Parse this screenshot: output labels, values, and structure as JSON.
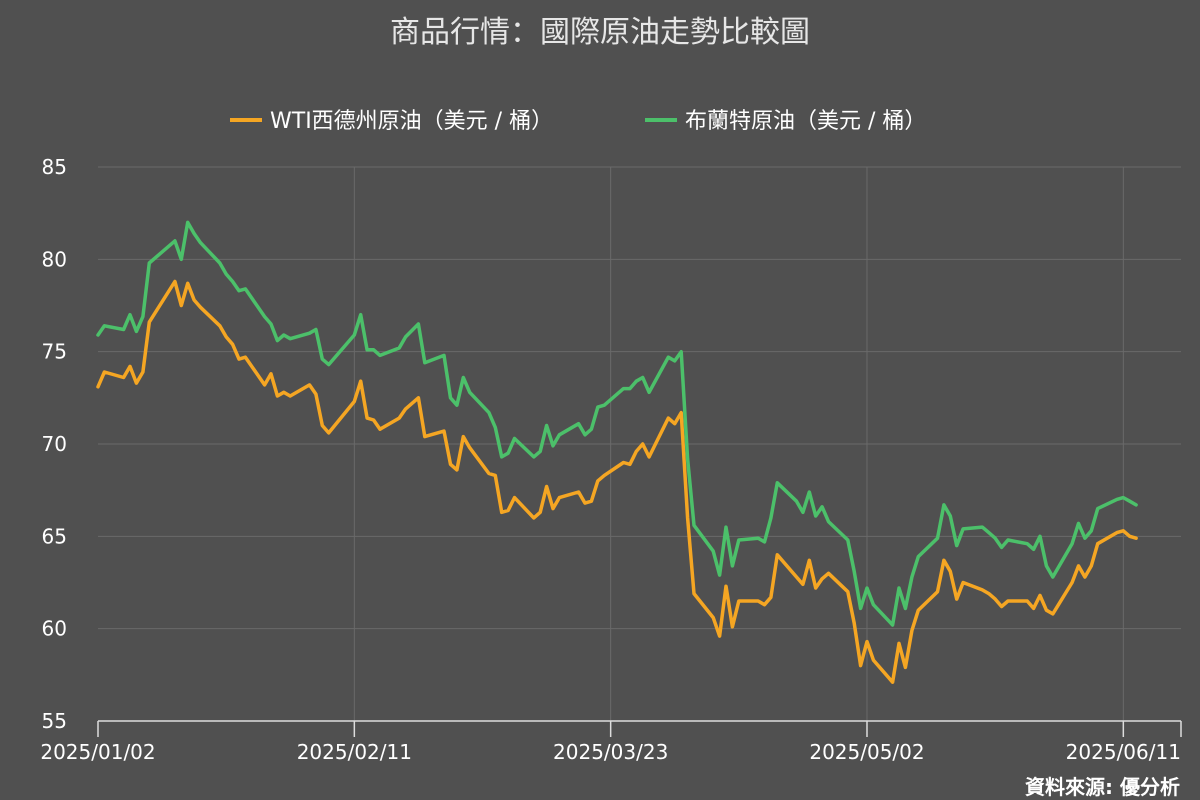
{
  "chart_data": {
    "type": "line",
    "title": "商品行情：國際原油走勢比較圖",
    "source": "資料來源: 優分析",
    "legend_position": "top",
    "grid": true,
    "ylim": [
      55,
      85
    ],
    "yticks": [
      55,
      60,
      65,
      70,
      75,
      80,
      85
    ],
    "xlim": [
      "2025/01/02",
      "2025/06/20"
    ],
    "xticks": [
      "2025/01/02",
      "2025/02/11",
      "2025/03/23",
      "2025/05/02",
      "2025/06/11"
    ],
    "series": [
      {
        "name": "WTI西德州原油（美元 / 桶）",
        "color": "#f5a623",
        "points": [
          [
            "2025/01/02",
            73.1
          ],
          [
            "2025/01/03",
            73.9
          ],
          [
            "2025/01/06",
            73.6
          ],
          [
            "2025/01/07",
            74.2
          ],
          [
            "2025/01/08",
            73.3
          ],
          [
            "2025/01/09",
            73.9
          ],
          [
            "2025/01/10",
            76.6
          ],
          [
            "2025/01/14",
            78.8
          ],
          [
            "2025/01/15",
            77.5
          ],
          [
            "2025/01/16",
            78.7
          ],
          [
            "2025/01/17",
            77.8
          ],
          [
            "2025/01/18",
            77.4
          ],
          [
            "2025/01/21",
            76.4
          ],
          [
            "2025/01/22",
            75.8
          ],
          [
            "2025/01/23",
            75.4
          ],
          [
            "2025/01/24",
            74.6
          ],
          [
            "2025/01/25",
            74.7
          ],
          [
            "2025/01/28",
            73.2
          ],
          [
            "2025/01/29",
            73.8
          ],
          [
            "2025/01/30",
            72.6
          ],
          [
            "2025/01/31",
            72.8
          ],
          [
            "2025/02/01",
            72.6
          ],
          [
            "2025/02/04",
            73.2
          ],
          [
            "2025/02/05",
            72.7
          ],
          [
            "2025/02/06",
            71.0
          ],
          [
            "2025/02/07",
            70.6
          ],
          [
            "2025/02/11",
            72.3
          ],
          [
            "2025/02/12",
            73.4
          ],
          [
            "2025/02/13",
            71.4
          ],
          [
            "2025/02/14",
            71.3
          ],
          [
            "2025/02/15",
            70.8
          ],
          [
            "2025/02/18",
            71.4
          ],
          [
            "2025/02/19",
            71.9
          ],
          [
            "2025/02/21",
            72.5
          ],
          [
            "2025/02/22",
            70.4
          ],
          [
            "2025/02/25",
            70.7
          ],
          [
            "2025/02/26",
            68.9
          ],
          [
            "2025/02/27",
            68.6
          ],
          [
            "2025/02/28",
            70.4
          ],
          [
            "2025/03/01",
            69.8
          ],
          [
            "2025/03/04",
            68.4
          ],
          [
            "2025/03/05",
            68.3
          ],
          [
            "2025/03/06",
            66.3
          ],
          [
            "2025/03/07",
            66.4
          ],
          [
            "2025/03/08",
            67.1
          ],
          [
            "2025/03/11",
            66.0
          ],
          [
            "2025/03/12",
            66.3
          ],
          [
            "2025/03/13",
            67.7
          ],
          [
            "2025/03/14",
            66.5
          ],
          [
            "2025/03/15",
            67.1
          ],
          [
            "2025/03/18",
            67.4
          ],
          [
            "2025/03/19",
            66.8
          ],
          [
            "2025/03/20",
            66.9
          ],
          [
            "2025/03/21",
            68.0
          ],
          [
            "2025/03/22",
            68.3
          ],
          [
            "2025/03/25",
            69.0
          ],
          [
            "2025/03/26",
            68.9
          ],
          [
            "2025/03/27",
            69.6
          ],
          [
            "2025/03/28",
            70.0
          ],
          [
            "2025/03/29",
            69.3
          ],
          [
            "2025/04/01",
            71.4
          ],
          [
            "2025/04/02",
            71.1
          ],
          [
            "2025/04/03",
            71.7
          ],
          [
            "2025/04/04",
            66.0
          ],
          [
            "2025/04/05",
            61.9
          ],
          [
            "2025/04/08",
            60.6
          ],
          [
            "2025/04/09",
            59.6
          ],
          [
            "2025/04/10",
            62.3
          ],
          [
            "2025/04/11",
            60.1
          ],
          [
            "2025/04/12",
            61.5
          ],
          [
            "2025/04/15",
            61.5
          ],
          [
            "2025/04/16",
            61.3
          ],
          [
            "2025/04/17",
            61.7
          ],
          [
            "2025/04/18",
            64.0
          ],
          [
            "2025/04/21",
            62.8
          ],
          [
            "2025/04/22",
            62.4
          ],
          [
            "2025/04/23",
            63.7
          ],
          [
            "2025/04/24",
            62.2
          ],
          [
            "2025/04/25",
            62.7
          ],
          [
            "2025/04/26",
            63.0
          ],
          [
            "2025/04/29",
            62.0
          ],
          [
            "2025/04/30",
            60.3
          ],
          [
            "2025/05/01",
            58.0
          ],
          [
            "2025/05/02",
            59.3
          ],
          [
            "2025/05/03",
            58.3
          ],
          [
            "2025/05/06",
            57.1
          ],
          [
            "2025/05/07",
            59.2
          ],
          [
            "2025/05/08",
            57.9
          ],
          [
            "2025/05/09",
            59.9
          ],
          [
            "2025/05/10",
            61.0
          ],
          [
            "2025/05/13",
            62.0
          ],
          [
            "2025/05/14",
            63.7
          ],
          [
            "2025/05/15",
            63.1
          ],
          [
            "2025/05/16",
            61.6
          ],
          [
            "2025/05/17",
            62.5
          ],
          [
            "2025/05/20",
            62.1
          ],
          [
            "2025/05/21",
            61.9
          ],
          [
            "2025/05/22",
            61.6
          ],
          [
            "2025/05/23",
            61.2
          ],
          [
            "2025/05/24",
            61.5
          ],
          [
            "2025/05/27",
            61.5
          ],
          [
            "2025/05/28",
            61.1
          ],
          [
            "2025/05/29",
            61.8
          ],
          [
            "2025/05/30",
            61.0
          ],
          [
            "2025/05/31",
            60.8
          ],
          [
            "2025/06/03",
            62.5
          ],
          [
            "2025/06/04",
            63.4
          ],
          [
            "2025/06/05",
            62.8
          ],
          [
            "2025/06/06",
            63.4
          ],
          [
            "2025/06/07",
            64.6
          ],
          [
            "2025/06/10",
            65.2
          ],
          [
            "2025/06/11",
            65.3
          ],
          [
            "2025/06/12",
            65.0
          ],
          [
            "2025/06/13",
            64.9
          ]
        ]
      },
      {
        "name": "布蘭特原油（美元 / 桶）",
        "color": "#4cc06a",
        "points": [
          [
            "2025/01/02",
            75.9
          ],
          [
            "2025/01/03",
            76.4
          ],
          [
            "2025/01/06",
            76.2
          ],
          [
            "2025/01/07",
            77.0
          ],
          [
            "2025/01/08",
            76.1
          ],
          [
            "2025/01/09",
            76.9
          ],
          [
            "2025/01/10",
            79.8
          ],
          [
            "2025/01/14",
            81.0
          ],
          [
            "2025/01/15",
            80.0
          ],
          [
            "2025/01/16",
            82.0
          ],
          [
            "2025/01/17",
            81.4
          ],
          [
            "2025/01/18",
            80.9
          ],
          [
            "2025/01/21",
            79.8
          ],
          [
            "2025/01/22",
            79.2
          ],
          [
            "2025/01/23",
            78.8
          ],
          [
            "2025/01/24",
            78.3
          ],
          [
            "2025/01/25",
            78.4
          ],
          [
            "2025/01/28",
            76.9
          ],
          [
            "2025/01/29",
            76.5
          ],
          [
            "2025/01/30",
            75.6
          ],
          [
            "2025/01/31",
            75.9
          ],
          [
            "2025/02/01",
            75.7
          ],
          [
            "2025/02/04",
            76.0
          ],
          [
            "2025/02/05",
            76.2
          ],
          [
            "2025/02/06",
            74.6
          ],
          [
            "2025/02/07",
            74.3
          ],
          [
            "2025/02/11",
            75.9
          ],
          [
            "2025/02/12",
            77.0
          ],
          [
            "2025/02/13",
            75.1
          ],
          [
            "2025/02/14",
            75.1
          ],
          [
            "2025/02/15",
            74.8
          ],
          [
            "2025/02/18",
            75.2
          ],
          [
            "2025/02/19",
            75.8
          ],
          [
            "2025/02/21",
            76.5
          ],
          [
            "2025/02/22",
            74.4
          ],
          [
            "2025/02/25",
            74.8
          ],
          [
            "2025/02/26",
            72.5
          ],
          [
            "2025/02/27",
            72.1
          ],
          [
            "2025/02/28",
            73.6
          ],
          [
            "2025/03/01",
            72.8
          ],
          [
            "2025/03/04",
            71.7
          ],
          [
            "2025/03/05",
            70.9
          ],
          [
            "2025/03/06",
            69.3
          ],
          [
            "2025/03/07",
            69.5
          ],
          [
            "2025/03/08",
            70.3
          ],
          [
            "2025/03/11",
            69.3
          ],
          [
            "2025/03/12",
            69.6
          ],
          [
            "2025/03/13",
            71.0
          ],
          [
            "2025/03/14",
            69.9
          ],
          [
            "2025/03/15",
            70.5
          ],
          [
            "2025/03/18",
            71.1
          ],
          [
            "2025/03/19",
            70.5
          ],
          [
            "2025/03/20",
            70.8
          ],
          [
            "2025/03/21",
            72.0
          ],
          [
            "2025/03/22",
            72.1
          ],
          [
            "2025/03/25",
            73.0
          ],
          [
            "2025/03/26",
            73.0
          ],
          [
            "2025/03/27",
            73.4
          ],
          [
            "2025/03/28",
            73.6
          ],
          [
            "2025/03/29",
            72.8
          ],
          [
            "2025/04/01",
            74.7
          ],
          [
            "2025/04/02",
            74.5
          ],
          [
            "2025/04/03",
            75.0
          ],
          [
            "2025/04/04",
            69.2
          ],
          [
            "2025/04/05",
            65.6
          ],
          [
            "2025/04/08",
            64.2
          ],
          [
            "2025/04/09",
            62.9
          ],
          [
            "2025/04/10",
            65.5
          ],
          [
            "2025/04/11",
            63.4
          ],
          [
            "2025/04/12",
            64.8
          ],
          [
            "2025/04/15",
            64.9
          ],
          [
            "2025/04/16",
            64.7
          ],
          [
            "2025/04/17",
            66.0
          ],
          [
            "2025/04/18",
            67.9
          ],
          [
            "2025/04/21",
            66.9
          ],
          [
            "2025/04/22",
            66.3
          ],
          [
            "2025/04/23",
            67.4
          ],
          [
            "2025/04/24",
            66.1
          ],
          [
            "2025/04/25",
            66.6
          ],
          [
            "2025/04/26",
            65.8
          ],
          [
            "2025/04/29",
            64.8
          ],
          [
            "2025/04/30",
            63.1
          ],
          [
            "2025/05/01",
            61.1
          ],
          [
            "2025/05/02",
            62.2
          ],
          [
            "2025/05/03",
            61.3
          ],
          [
            "2025/05/06",
            60.2
          ],
          [
            "2025/05/07",
            62.2
          ],
          [
            "2025/05/08",
            61.1
          ],
          [
            "2025/05/09",
            62.8
          ],
          [
            "2025/05/10",
            63.9
          ],
          [
            "2025/05/13",
            64.9
          ],
          [
            "2025/05/14",
            66.7
          ],
          [
            "2025/05/15",
            66.1
          ],
          [
            "2025/05/16",
            64.5
          ],
          [
            "2025/05/17",
            65.4
          ],
          [
            "2025/05/20",
            65.5
          ],
          [
            "2025/05/21",
            65.2
          ],
          [
            "2025/05/22",
            64.9
          ],
          [
            "2025/05/23",
            64.4
          ],
          [
            "2025/05/24",
            64.8
          ],
          [
            "2025/05/27",
            64.6
          ],
          [
            "2025/05/28",
            64.3
          ],
          [
            "2025/05/29",
            65.0
          ],
          [
            "2025/05/30",
            63.4
          ],
          [
            "2025/05/31",
            62.8
          ],
          [
            "2025/06/03",
            64.6
          ],
          [
            "2025/06/04",
            65.7
          ],
          [
            "2025/06/05",
            64.9
          ],
          [
            "2025/06/06",
            65.3
          ],
          [
            "2025/06/07",
            66.5
          ],
          [
            "2025/06/10",
            67.0
          ],
          [
            "2025/06/11",
            67.1
          ],
          [
            "2025/06/12",
            66.9
          ],
          [
            "2025/06/13",
            66.7
          ]
        ]
      }
    ]
  }
}
